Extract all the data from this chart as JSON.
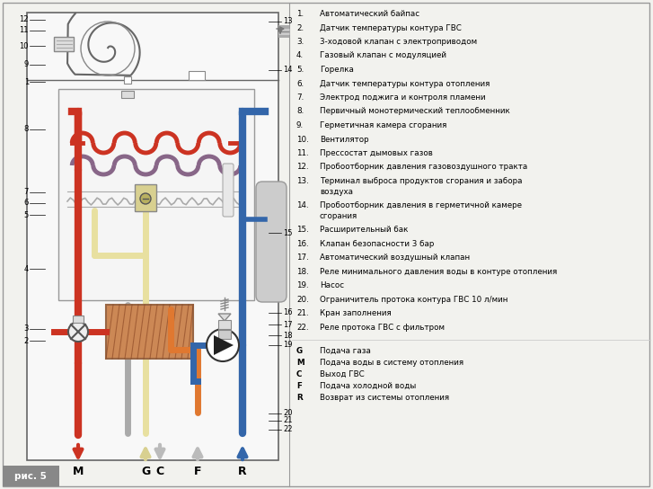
{
  "bg_color": "#f2f2ee",
  "legend_items": [
    {
      "num": "1.",
      "text": "Автоматический байпас"
    },
    {
      "num": "2.",
      "text": "Датчик температуры контура ГВС"
    },
    {
      "num": "3.",
      "text": "3-ходовой клапан с электроприводом"
    },
    {
      "num": "4.",
      "text": "Газовый клапан с модуляцией"
    },
    {
      "num": "5.",
      "text": "Горелка"
    },
    {
      "num": "6.",
      "text": "Датчик температуры контура отопления"
    },
    {
      "num": "7.",
      "text": "Электрод поджига и контроля пламени"
    },
    {
      "num": "8.",
      "text": "Первичный монотермический теплообменник"
    },
    {
      "num": "9.",
      "text": "Герметичная камера сгорания"
    },
    {
      "num": "10.",
      "text": "Вентилятор"
    },
    {
      "num": "11.",
      "text": "Прессостат дымовых газов"
    },
    {
      "num": "12.",
      "text": "Пробоотборник давления газовоздушного тракта"
    },
    {
      "num": "13.",
      "text": "Терминал выброса продуктов сгорания и забора\nвоздуха"
    },
    {
      "num": "14.",
      "text": "Пробоотборник давления в герметичной камере\nсгорания"
    },
    {
      "num": "15.",
      "text": "Расширительный бак"
    },
    {
      "num": "16.",
      "text": "Клапан безопасности 3 бар"
    },
    {
      "num": "17.",
      "text": "Автоматический воздушный клапан"
    },
    {
      "num": "18.",
      "text": "Реле минимального давления воды в контуре отопления"
    },
    {
      "num": "19.",
      "text": "Насос"
    },
    {
      "num": "20.",
      "text": "Ограничитель протока контура ГВС 10 л/мин"
    },
    {
      "num": "21.",
      "text": "Кран заполнения"
    },
    {
      "num": "22.",
      "text": "Реле протока ГВС с фильтром"
    }
  ],
  "legend_codes": [
    {
      "code": "G",
      "text": "Подача газа"
    },
    {
      "code": "M",
      "text": "Подача воды в систему отопления"
    },
    {
      "code": "C",
      "text": "Выход ГВС"
    },
    {
      "code": "F",
      "text": "Подача холодной воды"
    },
    {
      "code": "R",
      "text": "Возврат из системы отопления"
    }
  ],
  "red": "#cc3322",
  "blue": "#3366aa",
  "yellow": "#e8e0a0",
  "gray": "#aaaaaa",
  "orange": "#e07830",
  "dark_gray": "#888888",
  "pipe_lw": 5
}
